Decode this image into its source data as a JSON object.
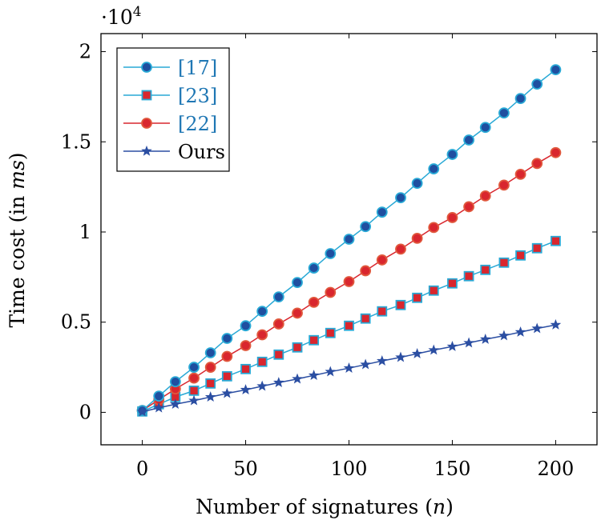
{
  "chart_data": {
    "type": "line",
    "title": "",
    "xlabel_main": "Number of signatures (",
    "xlabel_var": "n",
    "xlabel_end": ")",
    "ylabel_main": "Time cost (in ",
    "ylabel_var": "ms",
    "ylabel_end": ")",
    "y_multiplier_base": "·10",
    "y_multiplier_exp": "4",
    "xlim": [
      -20,
      220
    ],
    "ylim": [
      -0.18,
      2.1
    ],
    "xticks": [
      0,
      50,
      100,
      150,
      200
    ],
    "xtick_labels": [
      "0",
      "50",
      "100",
      "150",
      "200"
    ],
    "yticks": [
      0,
      0.5,
      1,
      1.5,
      2
    ],
    "ytick_labels": [
      "0",
      "0.5",
      "1",
      "1.5",
      "2"
    ],
    "legend_position": "top-left",
    "series": [
      {
        "name": "[17]",
        "name_color": "#1f77b4",
        "line_color": "#29a9d6",
        "marker": "circle",
        "marker_fill": "#1f4fa0",
        "marker_stroke": "#29a9d6",
        "x": [
          0,
          8,
          16,
          25,
          33,
          41,
          50,
          58,
          66,
          75,
          83,
          91,
          100,
          108,
          116,
          125,
          133,
          141,
          150,
          158,
          166,
          175,
          183,
          191,
          200
        ],
        "values": [
          0.01,
          0.09,
          0.17,
          0.25,
          0.33,
          0.41,
          0.48,
          0.56,
          0.64,
          0.72,
          0.8,
          0.88,
          0.96,
          1.03,
          1.11,
          1.19,
          1.27,
          1.35,
          1.43,
          1.51,
          1.58,
          1.66,
          1.74,
          1.82,
          1.9
        ]
      },
      {
        "name": "[23]",
        "name_color": "#1f77b4",
        "line_color": "#29a9d6",
        "marker": "square",
        "marker_fill": "#d9262e",
        "marker_stroke": "#29a9d6",
        "x": [
          0,
          8,
          16,
          25,
          33,
          41,
          50,
          58,
          66,
          75,
          83,
          91,
          100,
          108,
          116,
          125,
          133,
          141,
          150,
          158,
          166,
          175,
          183,
          191,
          200
        ],
        "values": [
          0.005,
          0.045,
          0.085,
          0.12,
          0.16,
          0.2,
          0.24,
          0.28,
          0.32,
          0.36,
          0.4,
          0.44,
          0.48,
          0.52,
          0.56,
          0.595,
          0.635,
          0.675,
          0.715,
          0.755,
          0.79,
          0.83,
          0.87,
          0.91,
          0.95
        ]
      },
      {
        "name": "[22]",
        "name_color": "#1f77b4",
        "line_color": "#d9262e",
        "marker": "circle",
        "marker_fill": "#d9262e",
        "marker_stroke": "#e0583d",
        "x": [
          0,
          8,
          16,
          25,
          33,
          41,
          50,
          58,
          66,
          75,
          83,
          91,
          100,
          108,
          116,
          125,
          133,
          141,
          150,
          158,
          166,
          175,
          183,
          191,
          200
        ],
        "values": [
          0.01,
          0.07,
          0.13,
          0.19,
          0.25,
          0.31,
          0.37,
          0.43,
          0.49,
          0.55,
          0.61,
          0.665,
          0.725,
          0.785,
          0.845,
          0.905,
          0.965,
          1.025,
          1.08,
          1.14,
          1.2,
          1.26,
          1.32,
          1.38,
          1.44
        ]
      },
      {
        "name": "Ours",
        "name_color": "#000000",
        "line_color": "#2b4ea2",
        "marker": "star",
        "marker_fill": "#2b4ea2",
        "marker_stroke": "#2b4ea2",
        "x": [
          0,
          8,
          16,
          25,
          33,
          41,
          50,
          58,
          66,
          75,
          83,
          91,
          100,
          108,
          116,
          125,
          133,
          141,
          150,
          158,
          166,
          175,
          183,
          191,
          200
        ],
        "values": [
          0.003,
          0.025,
          0.045,
          0.065,
          0.085,
          0.105,
          0.125,
          0.145,
          0.165,
          0.185,
          0.205,
          0.225,
          0.245,
          0.265,
          0.285,
          0.305,
          0.325,
          0.345,
          0.365,
          0.385,
          0.405,
          0.425,
          0.445,
          0.465,
          0.485
        ]
      }
    ]
  }
}
